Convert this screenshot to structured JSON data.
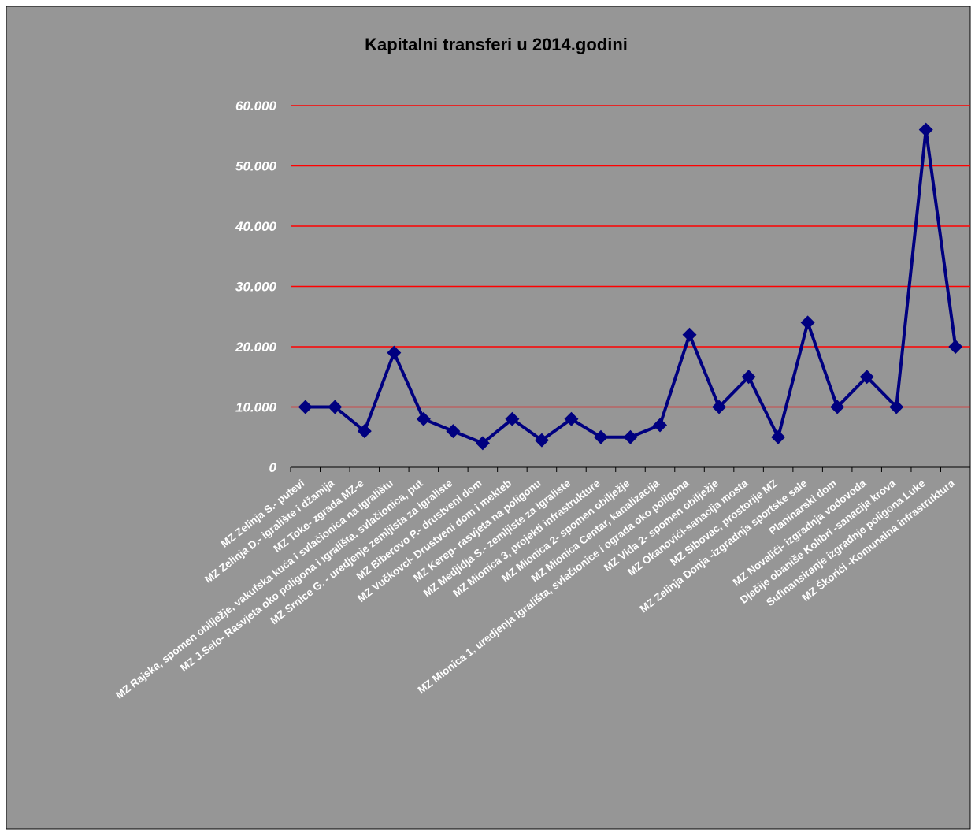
{
  "chart_data": {
    "type": "line",
    "title": "Kapitalni transferi u 2014.godini",
    "categories": [
      "MZ Zelinja S.- putevi",
      "MZ Zelinja D.- igralište i džamija",
      "MZ Toke- zgrada MZ-e",
      "MZ Rajska, spomen obilježje, vakufska kuća i svlačionica na igralištu",
      "MZ J.Selo- Rasvjeta oko poligona i igrališta, svlačionica, put",
      "MZ  Srnice G. - uredjenje zemljista za igraliste",
      "MZ Biberovo P.- drustveni dom",
      "MZ Vučkovci- Drustveni dom i mekteb",
      "MZ Kerep- rasvjeta na poligonu",
      "MZ Medjidja S.- zemljiste za igraliste",
      "MZ Mionica 3, projekti infrastrukture",
      "MZ Mionica 2- spomen obilježje",
      "MZ Mionica Centar, kanalizacija",
      "MZ Mionica 1, uredjenja igrališta, svlačionice i ograda oko poligona",
      "MZ Vida 2- spomen obilježje",
      "MZ Okanovići-sanacija mosta",
      "MZ Sibovac, prostorije  MZ",
      "MZ Zelinja Donja -izgradnja sportske sale",
      "Planinarski dom",
      "MZ Novalići- izgradnja vodovoda",
      "Dječije obaniše Kolibri -sanacija krova",
      "Sufinansiranje izgradnje poligona Luke",
      "MZ Škorići -Komunalna infrastruktura"
    ],
    "series": [
      {
        "name": "Kapitalni transferi",
        "color": "#000080",
        "values": [
          10000,
          10000,
          6000,
          19000,
          8000,
          6000,
          4000,
          8000,
          4500,
          8000,
          5000,
          5000,
          7000,
          22000,
          10000,
          15000,
          5000,
          24000,
          10000,
          15000,
          10000,
          56000,
          20000
        ]
      }
    ],
    "ylim": [
      0,
      60000
    ],
    "yticks": [
      0,
      {
        "value": 10000,
        "label": "10.000"
      },
      {
        "value": 20000,
        "label": "20.000"
      },
      {
        "value": 30000,
        "label": "30.000"
      },
      {
        "value": 40000,
        "label": "40.000"
      },
      {
        "value": 50000,
        "label": "50.000"
      },
      {
        "value": 60000,
        "label": "60.000"
      }
    ],
    "grid": true,
    "grid_color": "#ff0000",
    "background": "#969696"
  }
}
